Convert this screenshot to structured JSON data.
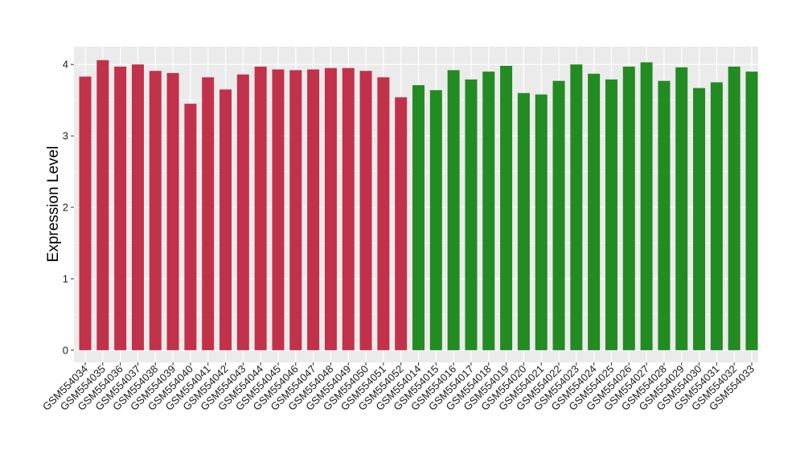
{
  "chart_data": {
    "type": "bar",
    "ylabel": "Expression Level",
    "xlabel": "",
    "ylim": [
      -0.17,
      4.25
    ],
    "yticks": [
      0,
      1,
      2,
      3,
      4
    ],
    "grid": true,
    "legend": "none",
    "panel_background": "#ebebeb",
    "gridline_color": "#ffffff",
    "categories": [
      "GSM554034",
      "GSM554035",
      "GSM554036",
      "GSM554037",
      "GSM554038",
      "GSM554039",
      "GSM554040",
      "GSM554041",
      "GSM554042",
      "GSM554043",
      "GSM554044",
      "GSM554045",
      "GSM554046",
      "GSM554047",
      "GSM554048",
      "GSM554049",
      "GSM554050",
      "GSM554051",
      "GSM554052",
      "GSM554014",
      "GSM554015",
      "GSM554016",
      "GSM554017",
      "GSM554018",
      "GSM554019",
      "GSM554020",
      "GSM554021",
      "GSM554022",
      "GSM554023",
      "GSM554024",
      "GSM554025",
      "GSM554026",
      "GSM554027",
      "GSM554028",
      "GSM554029",
      "GSM554030",
      "GSM554031",
      "GSM554032",
      "GSM554033"
    ],
    "values": [
      3.83,
      4.06,
      3.97,
      4.0,
      3.91,
      3.88,
      3.45,
      3.82,
      3.65,
      3.86,
      3.97,
      3.93,
      3.92,
      3.93,
      3.95,
      3.95,
      3.91,
      3.82,
      3.54,
      3.71,
      3.64,
      3.92,
      3.79,
      3.9,
      3.98,
      3.6,
      3.58,
      3.77,
      4.0,
      3.87,
      3.79,
      3.97,
      4.03,
      3.77,
      3.96,
      3.67,
      3.75,
      3.97,
      3.9
    ],
    "bar_colors": [
      "#c1324a",
      "#c1324a",
      "#c1324a",
      "#c1324a",
      "#c1324a",
      "#c1324a",
      "#c1324a",
      "#c1324a",
      "#c1324a",
      "#c1324a",
      "#c1324a",
      "#c1324a",
      "#c1324a",
      "#c1324a",
      "#c1324a",
      "#c1324a",
      "#c1324a",
      "#c1324a",
      "#c1324a",
      "#228b22",
      "#228b22",
      "#228b22",
      "#228b22",
      "#228b22",
      "#228b22",
      "#228b22",
      "#228b22",
      "#228b22",
      "#228b22",
      "#228b22",
      "#228b22",
      "#228b22",
      "#228b22",
      "#228b22",
      "#228b22",
      "#228b22",
      "#228b22",
      "#228b22",
      "#228b22"
    ]
  }
}
